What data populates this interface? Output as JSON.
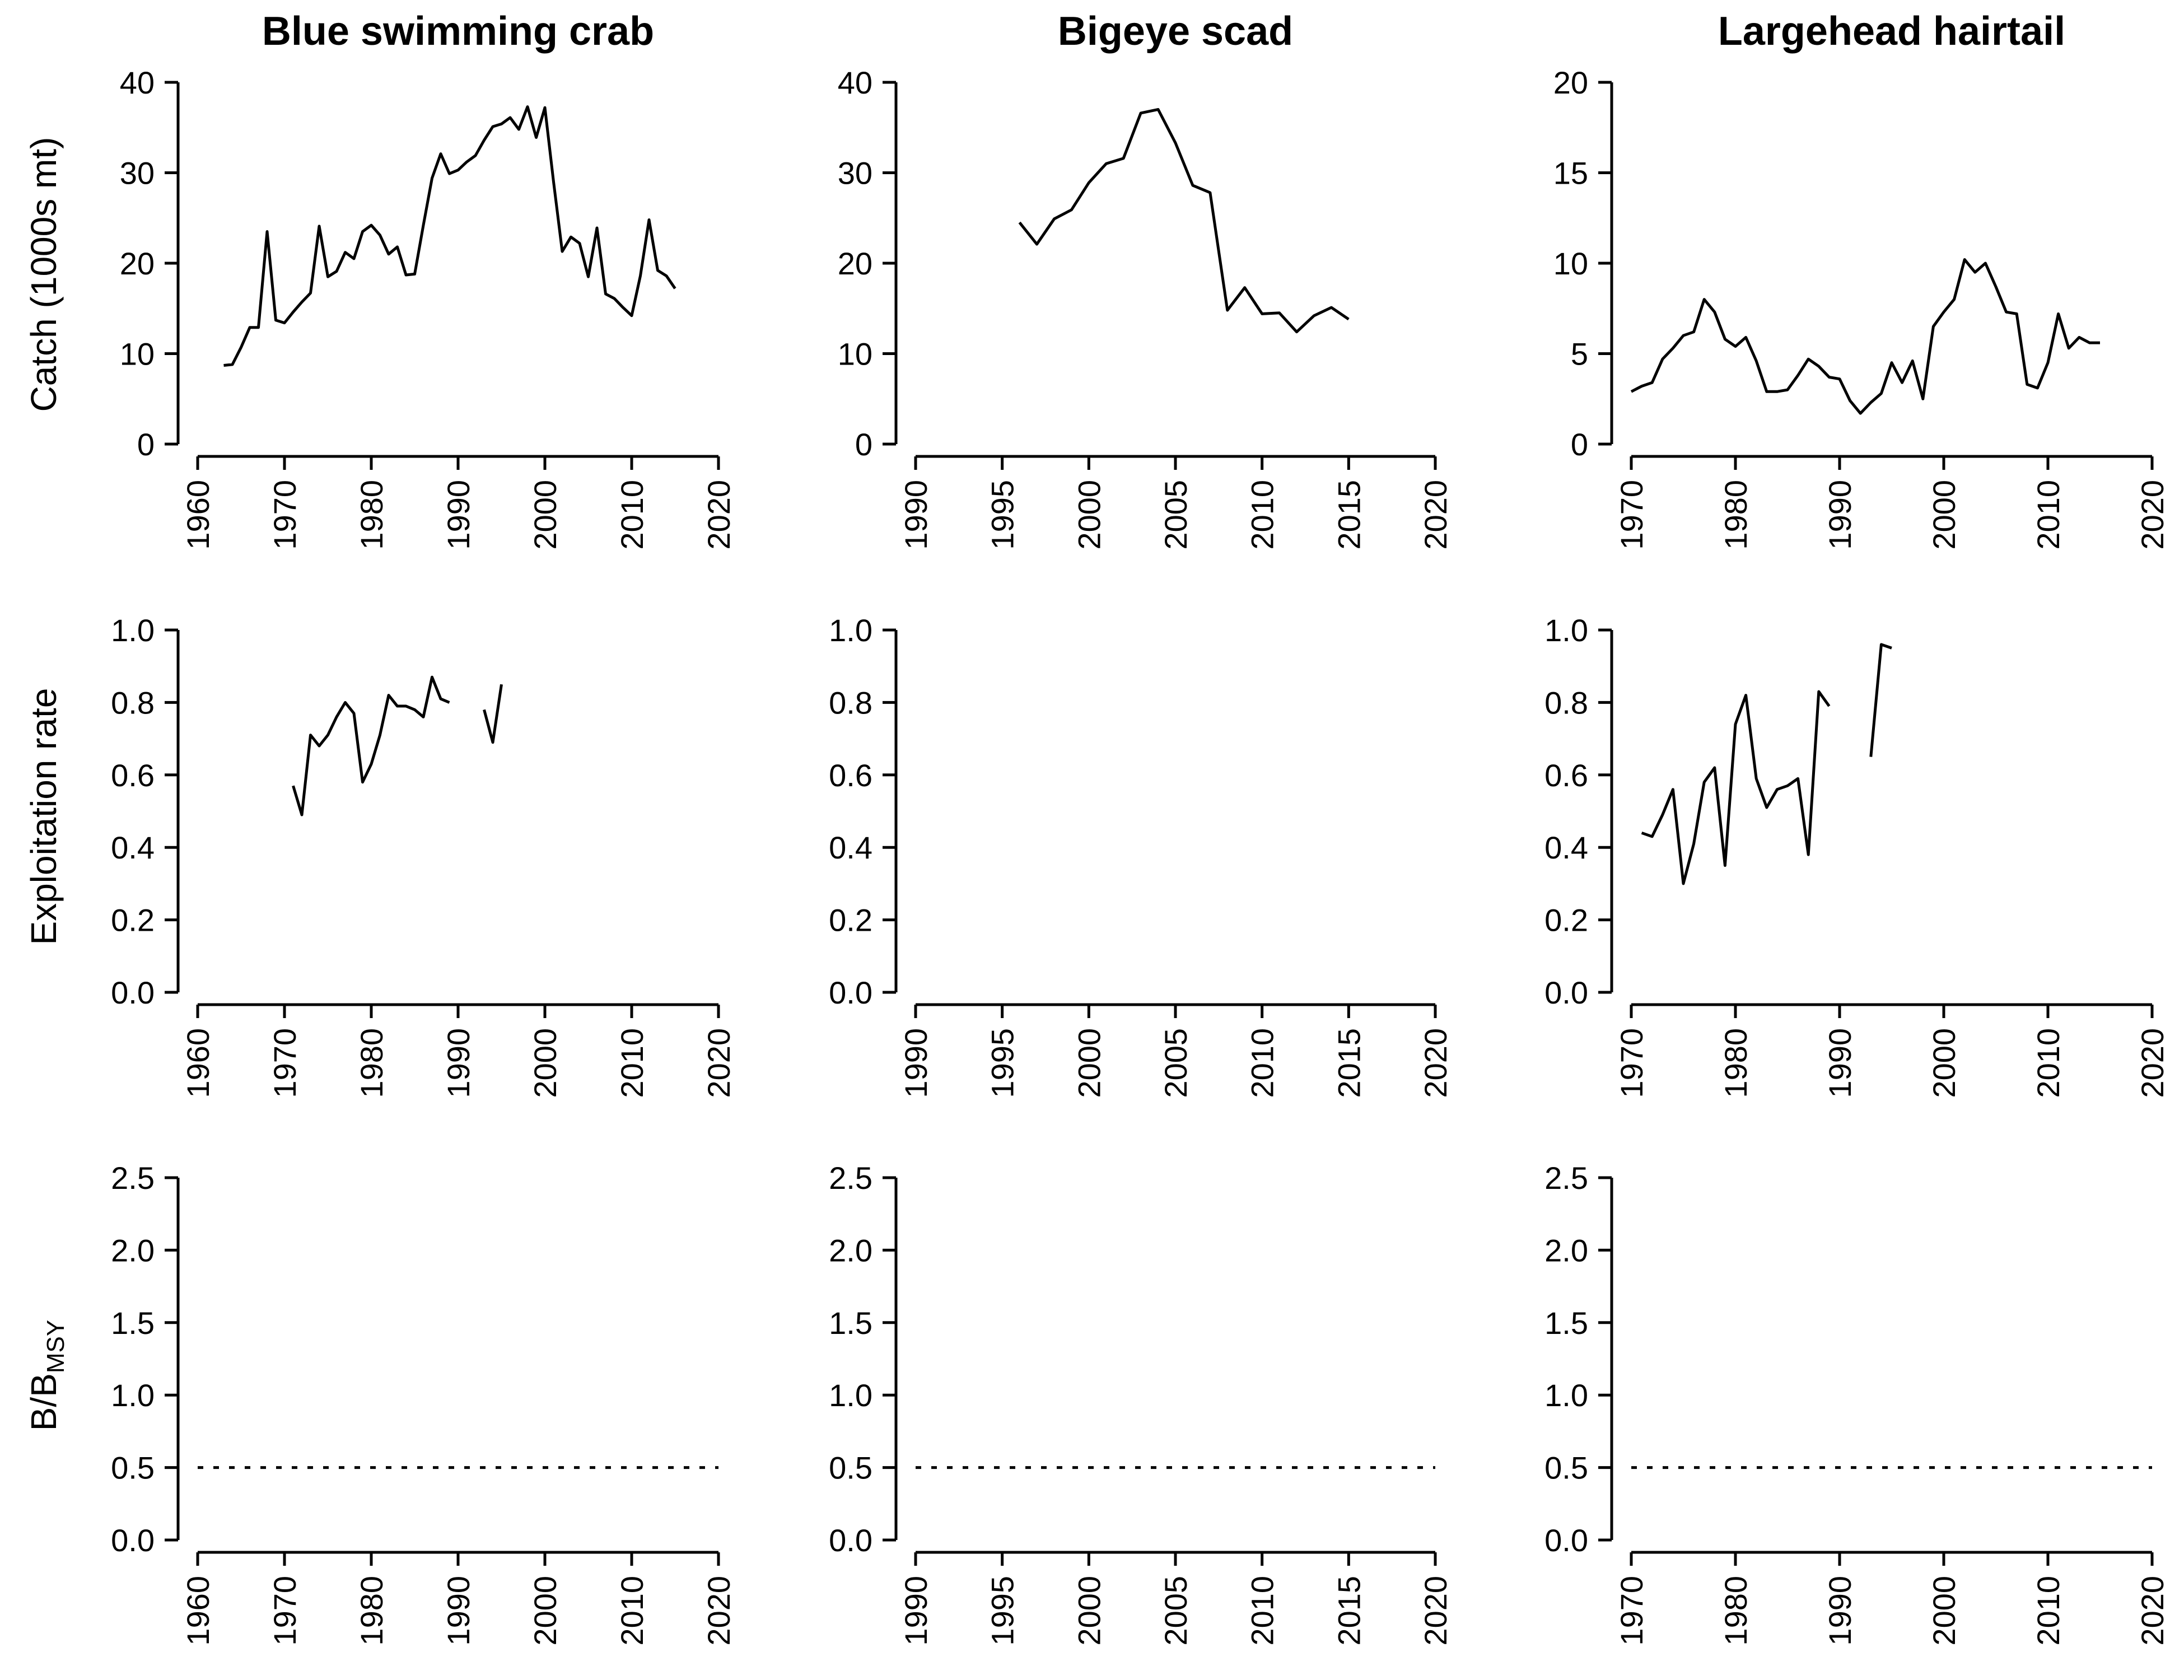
{
  "row_labels": {
    "catch": "Catch (1000s mt)",
    "exploitation": "Exploitation rate",
    "biomass_main": "B/B",
    "biomass_sub": "MSY"
  },
  "colors": {
    "line": "#000000",
    "axis": "#000000",
    "background": "#ffffff"
  },
  "chart_data": [
    {
      "type": "line",
      "title": "Blue swimming crab",
      "ylabel": "Catch (1000s mt)",
      "xlim": [
        1960,
        2020
      ],
      "xticks": [
        "1960",
        "1970",
        "1980",
        "1990",
        "2000",
        "2010",
        "2020"
      ],
      "ylim": [
        0,
        40
      ],
      "yticks": [
        "0",
        "10",
        "20",
        "30",
        "40"
      ],
      "series": [
        {
          "x": [
            1963,
            1964,
            1965,
            1966,
            1967,
            1968,
            1969,
            1970,
            1971,
            1972,
            1973,
            1974,
            1975,
            1976,
            1977,
            1978,
            1979,
            1980,
            1981,
            1982,
            1983,
            1984,
            1985,
            1986,
            1987,
            1988,
            1989,
            1990,
            1991,
            1992,
            1993,
            1994,
            1995,
            1996,
            1997,
            1998,
            1999,
            2000,
            2001,
            2002,
            2003,
            2004,
            2005,
            2006,
            2007,
            2008,
            2009,
            2010,
            2011,
            2012,
            2013,
            2014,
            2015
          ],
          "y": [
            8.7,
            8.8,
            10.7,
            12.9,
            12.9,
            23.5,
            13.7,
            13.4,
            14.6,
            15.7,
            16.7,
            24.1,
            18.5,
            19.1,
            21.2,
            20.5,
            23.5,
            24.2,
            23.1,
            21.0,
            21.8,
            18.7,
            18.8,
            24.2,
            29.4,
            32.1,
            29.9,
            30.3,
            31.2,
            31.9,
            33.6,
            35.1,
            35.4,
            36.1,
            34.8,
            37.3,
            33.9,
            37.2,
            29.0,
            21.3,
            22.9,
            22.2,
            18.5,
            23.9,
            16.6,
            16.1,
            15.1,
            14.2,
            18.6,
            24.8,
            19.2,
            18.6,
            17.2
          ]
        }
      ]
    },
    {
      "type": "line",
      "title": "Bigeye scad",
      "ylabel": "",
      "xlim": [
        1990,
        2020
      ],
      "xticks": [
        "1990",
        "1995",
        "2000",
        "2005",
        "2010",
        "2015",
        "2020"
      ],
      "ylim": [
        0,
        40
      ],
      "yticks": [
        "0",
        "10",
        "20",
        "30",
        "40"
      ],
      "series": [
        {
          "x": [
            1996,
            1997,
            1998,
            1999,
            2000,
            2001,
            2002,
            2003,
            2004,
            2005,
            2006,
            2007,
            2008,
            2009,
            2010,
            2011,
            2012,
            2013,
            2014,
            2015
          ],
          "y": [
            24.5,
            22.1,
            24.9,
            25.9,
            28.9,
            31.0,
            31.6,
            36.6,
            37.0,
            33.3,
            28.6,
            27.8,
            14.8,
            17.3,
            14.4,
            14.5,
            12.4,
            14.2,
            15.1,
            13.8
          ]
        }
      ]
    },
    {
      "type": "line",
      "title": "Largehead hairtail",
      "ylabel": "",
      "xlim": [
        1970,
        2020
      ],
      "xticks": [
        "1970",
        "1980",
        "1990",
        "2000",
        "2010",
        "2020"
      ],
      "ylim": [
        0,
        20
      ],
      "yticks": [
        "0",
        "5",
        "10",
        "15",
        "20"
      ],
      "series": [
        {
          "x": [
            1970,
            1971,
            1972,
            1973,
            1974,
            1975,
            1976,
            1977,
            1978,
            1979,
            1980,
            1981,
            1982,
            1983,
            1984,
            1985,
            1986,
            1987,
            1988,
            1989,
            1990,
            1991,
            1992,
            1993,
            1994,
            1995,
            1996,
            1997,
            1998,
            1999,
            2000,
            2001,
            2002,
            2003,
            2004,
            2005,
            2006,
            2007,
            2008,
            2009,
            2010,
            2011,
            2012,
            2013,
            2014,
            2015
          ],
          "y": [
            2.9,
            3.2,
            3.4,
            4.7,
            5.3,
            6.0,
            6.2,
            8.0,
            7.3,
            5.8,
            5.4,
            5.9,
            4.6,
            2.9,
            2.9,
            3.0,
            3.8,
            4.7,
            4.3,
            3.7,
            3.6,
            2.4,
            1.7,
            2.3,
            2.8,
            4.5,
            3.4,
            4.6,
            2.5,
            6.5,
            7.3,
            8.0,
            10.2,
            9.5,
            10.0,
            8.7,
            7.3,
            7.2,
            3.3,
            3.1,
            4.5,
            7.2,
            5.3,
            5.9,
            5.6,
            5.6
          ]
        }
      ]
    },
    {
      "type": "line",
      "title": "",
      "ylabel": "Exploitation rate",
      "xlim": [
        1960,
        2020
      ],
      "xticks": [
        "1960",
        "1970",
        "1980",
        "1990",
        "2000",
        "2010",
        "2020"
      ],
      "ylim": [
        0,
        1
      ],
      "yticks": [
        "0.0",
        "0.2",
        "0.4",
        "0.6",
        "0.8",
        "1.0"
      ],
      "series": [
        {
          "x": [
            1971,
            1972,
            1973,
            1974,
            1975,
            1976,
            1977,
            1978,
            1979,
            1980,
            1981,
            1982,
            1983,
            1984,
            1985,
            1986,
            1987,
            1988,
            1989,
            1990,
            1991,
            1992,
            1993,
            1994,
            1995
          ],
          "y": [
            0.57,
            0.49,
            0.71,
            0.68,
            0.71,
            0.76,
            0.8,
            0.77,
            0.58,
            0.63,
            0.71,
            0.82,
            0.79,
            0.79,
            0.78,
            0.76,
            0.87,
            0.81,
            0.8,
            null,
            null,
            null,
            0.78,
            0.69,
            0.85
          ]
        }
      ]
    },
    {
      "type": "line",
      "title": "",
      "ylabel": "",
      "xlim": [
        1990,
        2020
      ],
      "xticks": [
        "1990",
        "1995",
        "2000",
        "2005",
        "2010",
        "2015",
        "2020"
      ],
      "ylim": [
        0,
        1
      ],
      "yticks": [
        "0.0",
        "0.2",
        "0.4",
        "0.6",
        "0.8",
        "1.0"
      ],
      "series": []
    },
    {
      "type": "line",
      "title": "",
      "ylabel": "",
      "xlim": [
        1970,
        2020
      ],
      "xticks": [
        "1970",
        "1980",
        "1990",
        "2000",
        "2010",
        "2020"
      ],
      "ylim": [
        0,
        1
      ],
      "yticks": [
        "0.0",
        "0.2",
        "0.4",
        "0.6",
        "0.8",
        "1.0"
      ],
      "series": [
        {
          "x": [
            1971,
            1972,
            1973,
            1974,
            1975,
            1976,
            1977,
            1978,
            1979,
            1980,
            1981,
            1982,
            1983,
            1984,
            1985,
            1986,
            1987,
            1988,
            1989,
            1990,
            1991,
            1992,
            1993,
            1994,
            1995
          ],
          "y": [
            0.44,
            0.43,
            0.49,
            0.56,
            0.3,
            0.41,
            0.58,
            0.62,
            0.35,
            0.74,
            0.82,
            0.59,
            0.51,
            0.56,
            0.57,
            0.59,
            0.38,
            0.83,
            0.79,
            null,
            null,
            null,
            0.65,
            0.96,
            0.95
          ]
        }
      ]
    },
    {
      "type": "line",
      "title": "",
      "ylabel": "B/BMSY",
      "xlim": [
        1960,
        2020
      ],
      "xticks": [
        "1960",
        "1970",
        "1980",
        "1990",
        "2000",
        "2010",
        "2020"
      ],
      "ylim": [
        0,
        2.5
      ],
      "yticks": [
        "0.0",
        "0.5",
        "1.0",
        "1.5",
        "2.0",
        "2.5"
      ],
      "series": [],
      "reference_line": {
        "y": 0.5,
        "style": "dotted"
      }
    },
    {
      "type": "line",
      "title": "",
      "ylabel": "",
      "xlim": [
        1990,
        2020
      ],
      "xticks": [
        "1990",
        "1995",
        "2000",
        "2005",
        "2010",
        "2015",
        "2020"
      ],
      "ylim": [
        0,
        2.5
      ],
      "yticks": [
        "0.0",
        "0.5",
        "1.0",
        "1.5",
        "2.0",
        "2.5"
      ],
      "series": [],
      "reference_line": {
        "y": 0.5,
        "style": "dotted"
      }
    },
    {
      "type": "line",
      "title": "",
      "ylabel": "",
      "xlim": [
        1970,
        2020
      ],
      "xticks": [
        "1970",
        "1980",
        "1990",
        "2000",
        "2010",
        "2020"
      ],
      "ylim": [
        0,
        2.5
      ],
      "yticks": [
        "0.0",
        "0.5",
        "1.0",
        "1.5",
        "2.0",
        "2.5"
      ],
      "series": [],
      "reference_line": {
        "y": 0.5,
        "style": "dotted"
      }
    }
  ]
}
